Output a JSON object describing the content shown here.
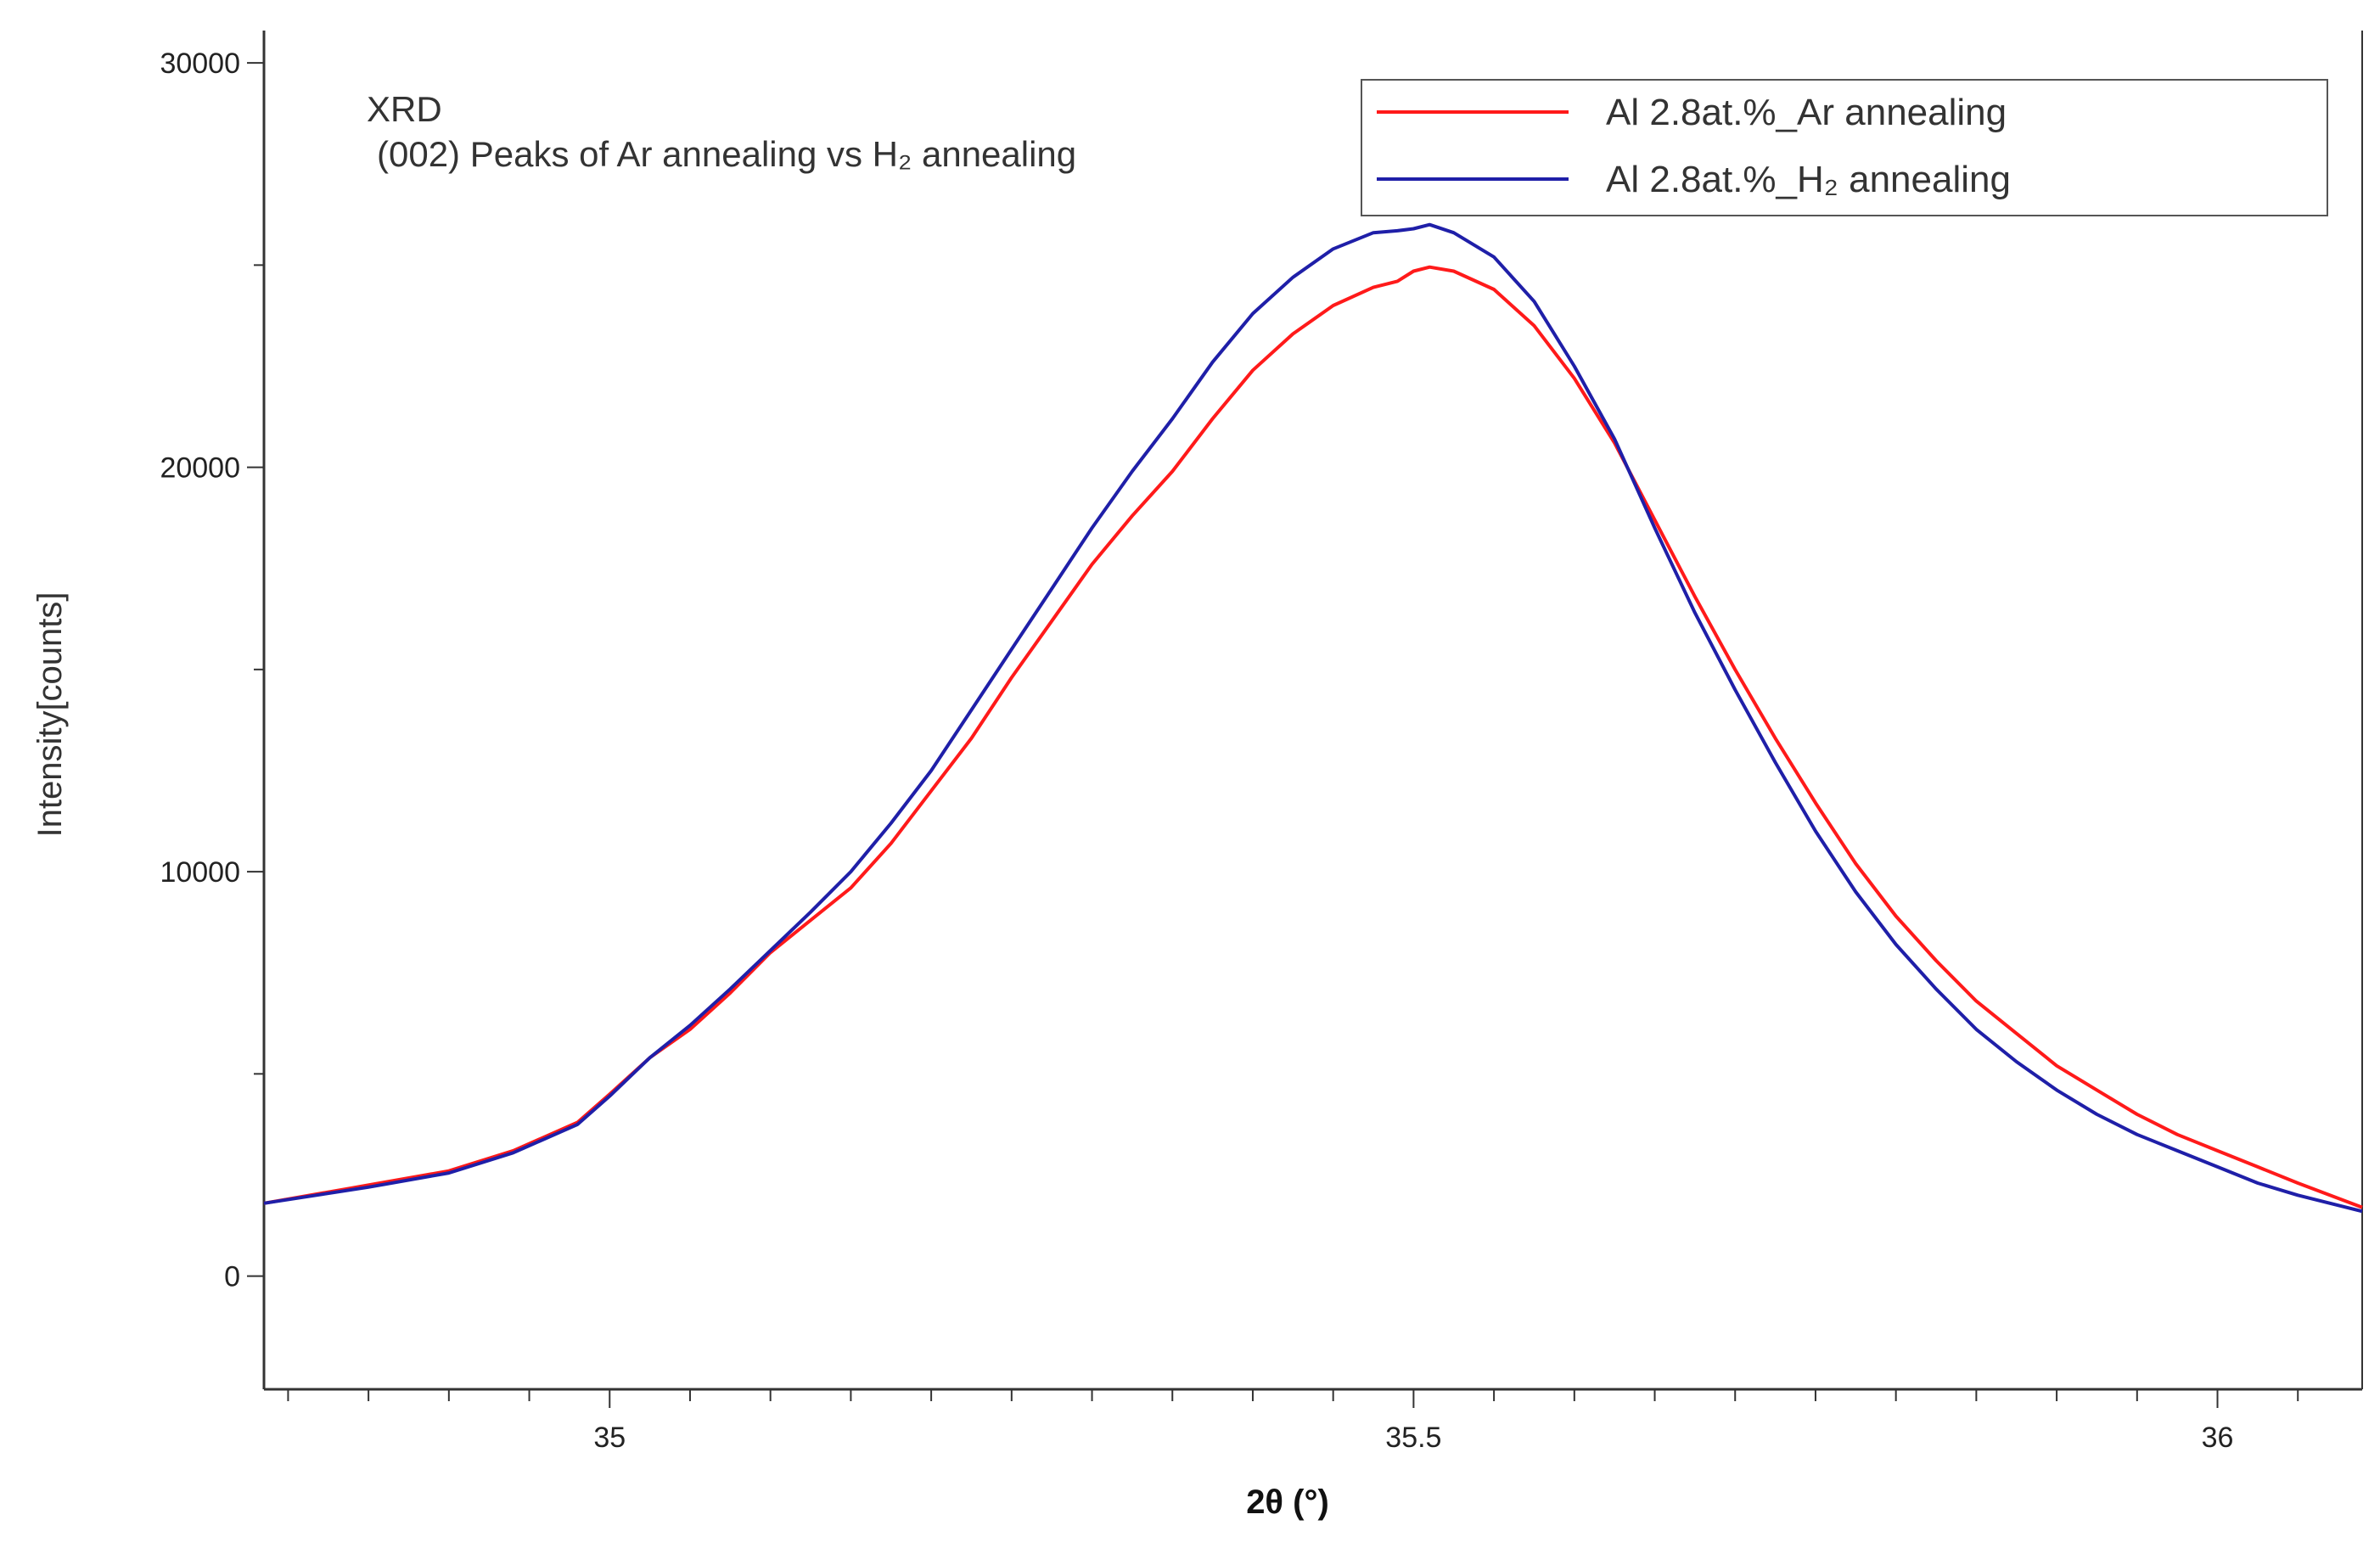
{
  "chart_data": {
    "type": "line",
    "annotations": [
      "XRD",
      "(002) Peaks of Ar annealing vs H₂ annealing"
    ],
    "xlabel": "2θ (°)",
    "ylabel": "Intensity[counts]",
    "xlim": [
      34.785,
      36.09
    ],
    "ylim": [
      -2800,
      30800
    ],
    "x_major_ticks": [
      35,
      35.5,
      36
    ],
    "x_tick_labels": [
      "35",
      "35.5",
      "36"
    ],
    "y_major_ticks": [
      0,
      10000,
      20000,
      30000
    ],
    "y_tick_labels": [
      "0",
      "10000",
      "20000",
      "30000"
    ],
    "y_minor_ticks": [
      5000,
      15000,
      25000
    ],
    "grid": false,
    "legend_position": "top-right",
    "series": [
      {
        "name": "Al 2.8at.%_Ar annealing",
        "color": "#ff1a1a",
        "points": [
          [
            34.785,
            1800
          ],
          [
            34.85,
            2250
          ],
          [
            34.9,
            2600
          ],
          [
            34.94,
            3100
          ],
          [
            34.98,
            3800
          ],
          [
            35.0,
            4500
          ],
          [
            35.025,
            5400
          ],
          [
            35.05,
            6100
          ],
          [
            35.075,
            7000
          ],
          [
            35.1,
            8000
          ],
          [
            35.125,
            8800
          ],
          [
            35.15,
            9600
          ],
          [
            35.175,
            10700
          ],
          [
            35.2,
            12000
          ],
          [
            35.225,
            13300
          ],
          [
            35.25,
            14800
          ],
          [
            35.275,
            16200
          ],
          [
            35.3,
            17600
          ],
          [
            35.325,
            18800
          ],
          [
            35.35,
            19900
          ],
          [
            35.375,
            21200
          ],
          [
            35.4,
            22400
          ],
          [
            35.425,
            23300
          ],
          [
            35.45,
            24000
          ],
          [
            35.475,
            24450
          ],
          [
            35.49,
            24600
          ],
          [
            35.5,
            24850
          ],
          [
            35.51,
            24950
          ],
          [
            35.525,
            24850
          ],
          [
            35.55,
            24400
          ],
          [
            35.575,
            23500
          ],
          [
            35.6,
            22200
          ],
          [
            35.625,
            20600
          ],
          [
            35.65,
            18700
          ],
          [
            35.675,
            16800
          ],
          [
            35.7,
            15000
          ],
          [
            35.725,
            13300
          ],
          [
            35.75,
            11700
          ],
          [
            35.775,
            10200
          ],
          [
            35.8,
            8900
          ],
          [
            35.825,
            7800
          ],
          [
            35.85,
            6800
          ],
          [
            35.875,
            6000
          ],
          [
            35.9,
            5200
          ],
          [
            35.925,
            4600
          ],
          [
            35.95,
            4000
          ],
          [
            35.975,
            3500
          ],
          [
            36.0,
            3100
          ],
          [
            36.025,
            2700
          ],
          [
            36.05,
            2300
          ],
          [
            36.09,
            1700
          ]
        ]
      },
      {
        "name": "Al 2.8at.%_H₂ annealing",
        "color": "#1f1fa8",
        "points": [
          [
            34.785,
            1800
          ],
          [
            34.85,
            2200
          ],
          [
            34.9,
            2550
          ],
          [
            34.94,
            3050
          ],
          [
            34.98,
            3750
          ],
          [
            35.0,
            4450
          ],
          [
            35.025,
            5400
          ],
          [
            35.05,
            6200
          ],
          [
            35.075,
            7100
          ],
          [
            35.1,
            8050
          ],
          [
            35.125,
            9000
          ],
          [
            35.15,
            10000
          ],
          [
            35.175,
            11200
          ],
          [
            35.2,
            12500
          ],
          [
            35.225,
            14000
          ],
          [
            35.25,
            15500
          ],
          [
            35.275,
            17000
          ],
          [
            35.3,
            18500
          ],
          [
            35.325,
            19900
          ],
          [
            35.35,
            21200
          ],
          [
            35.375,
            22600
          ],
          [
            35.4,
            23800
          ],
          [
            35.425,
            24700
          ],
          [
            35.45,
            25400
          ],
          [
            35.475,
            25800
          ],
          [
            35.49,
            25850
          ],
          [
            35.5,
            25900
          ],
          [
            35.51,
            26000
          ],
          [
            35.525,
            25800
          ],
          [
            35.55,
            25200
          ],
          [
            35.575,
            24100
          ],
          [
            35.6,
            22500
          ],
          [
            35.625,
            20700
          ],
          [
            35.65,
            18500
          ],
          [
            35.675,
            16400
          ],
          [
            35.7,
            14500
          ],
          [
            35.725,
            12700
          ],
          [
            35.75,
            11000
          ],
          [
            35.775,
            9500
          ],
          [
            35.8,
            8200
          ],
          [
            35.825,
            7100
          ],
          [
            35.85,
            6100
          ],
          [
            35.875,
            5300
          ],
          [
            35.9,
            4600
          ],
          [
            35.925,
            4000
          ],
          [
            35.95,
            3500
          ],
          [
            35.975,
            3100
          ],
          [
            36.0,
            2700
          ],
          [
            36.025,
            2300
          ],
          [
            36.05,
            2000
          ],
          [
            36.09,
            1600
          ]
        ]
      }
    ]
  }
}
